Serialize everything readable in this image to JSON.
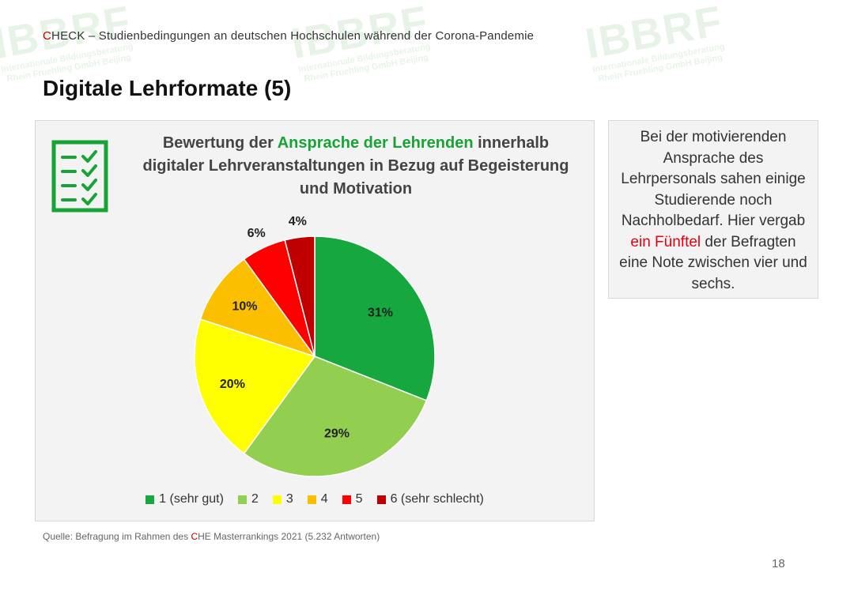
{
  "header": {
    "first_letter": "C",
    "rest_of_check": "HECK",
    "subtitle": " – Studienbedingungen an deutschen Hochschulen während der Corona-Pandemie"
  },
  "page_title": "Digitale Lehrformate (5)",
  "chart_data": {
    "type": "pie",
    "title_parts": {
      "before": "Bewertung der ",
      "highlight": "Ansprache der Lehrenden",
      "after": " innerhalb digitaler Lehrveranstaltungen in Bezug auf Begeisterung und Motivation"
    },
    "categories": [
      "1 (sehr gut)",
      "2",
      "3",
      "4",
      "5",
      "6 (sehr schlecht)"
    ],
    "values": [
      31,
      29,
      20,
      10,
      6,
      4
    ],
    "labels": [
      "31%",
      "29%",
      "20%",
      "10%",
      "6%",
      "4%"
    ],
    "colors": [
      "#16a83f",
      "#92cf50",
      "#fefe00",
      "#fbbf00",
      "#fe0000",
      "#c00000"
    ],
    "legend_position": "bottom"
  },
  "info_box": {
    "before": "Bei der motivierenden Ansprache des Lehrpersonals sahen einige Studierende noch Nachholbedarf. Hier vergab ",
    "highlight": "ein Fünftel",
    "after": " der Befragten eine Note zwischen vier und sechs."
  },
  "source": {
    "before": "Quelle: Befragung im Rahmen des ",
    "red_letter": "C",
    "after": "HE Masterrankings 2021 (5.232 Antworten)"
  },
  "page_number": "18",
  "watermark": {
    "brand": "IBBRF",
    "line1": "Internationale Bildungsberatung",
    "line2": "Rhein Fruehling GmbH Beijing"
  },
  "colors": {
    "accent_green": "#17a336",
    "accent_red": "#e3000f"
  }
}
